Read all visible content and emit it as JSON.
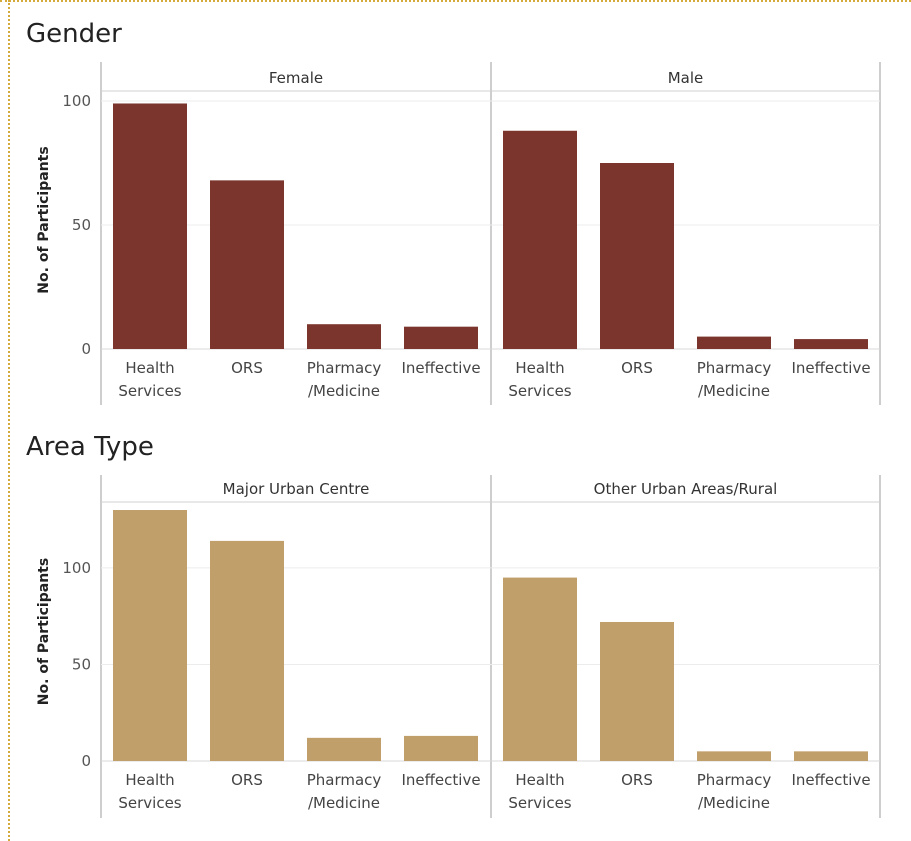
{
  "chart_data": [
    {
      "type": "bar",
      "title": "Gender",
      "ylabel": "No. of Participants",
      "ylim": [
        0,
        100
      ],
      "yticks": [
        0,
        50,
        100
      ],
      "categories": [
        [
          "Health",
          "Services"
        ],
        [
          "ORS"
        ],
        [
          "Pharmacy",
          "/Medicine"
        ],
        [
          "Ineffective"
        ]
      ],
      "color": "#7b352d",
      "panels": [
        {
          "name": "Female",
          "values": [
            99,
            68,
            10,
            9
          ]
        },
        {
          "name": "Male",
          "values": [
            88,
            75,
            5,
            4
          ]
        }
      ]
    },
    {
      "type": "bar",
      "title": "Area Type",
      "ylabel": "No. of Participants",
      "ylim": [
        0,
        130
      ],
      "yticks": [
        0,
        50,
        100
      ],
      "categories": [
        [
          "Health",
          "Services"
        ],
        [
          "ORS"
        ],
        [
          "Pharmacy",
          "/Medicine"
        ],
        [
          "Ineffective"
        ]
      ],
      "color": "#c19f6b",
      "panels": [
        {
          "name": "Major Urban Centre",
          "values": [
            130,
            114,
            12,
            13
          ]
        },
        {
          "name": "Other Urban Areas/Rural",
          "values": [
            95,
            72,
            5,
            5
          ]
        }
      ]
    }
  ]
}
